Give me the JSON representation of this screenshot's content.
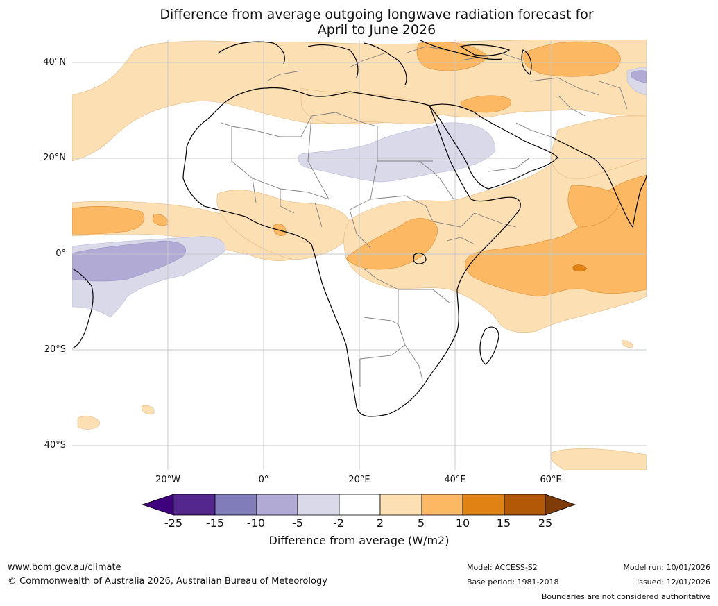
{
  "title": {
    "line1": "Difference from average outgoing longwave radiation forecast for",
    "line2": "April to June 2026"
  },
  "map": {
    "latitude_labels": [
      "40°N",
      "20°N",
      "0°",
      "20°S",
      "40°S"
    ],
    "longitude_labels": [
      "20°W",
      "0°",
      "20°E",
      "40°E",
      "60°E"
    ],
    "colors": {
      "neg25": "#3f007d",
      "neg15": "#54278f",
      "neg10": "#807dba",
      "neg5": "#b0aad4",
      "neg2": "#d9d9ea",
      "zero": "#ffffff",
      "pos2": "#fddfb4",
      "pos5": "#fdb863",
      "pos10": "#e08214",
      "pos15": "#b35806",
      "pos25": "#7f3b08"
    }
  },
  "colorbar": {
    "ticks": [
      "-25",
      "-15",
      "-10",
      "-5",
      "-2",
      "2",
      "5",
      "10",
      "15",
      "25"
    ],
    "label": "Difference from average (W/m2)"
  },
  "footer": {
    "website": "www.bom.gov.au/climate",
    "copyright": "© Commonwealth of Australia 2026, Australian Bureau of Meteorology",
    "model": "Model: ACCESS-S2",
    "base_period": "Base period: 1981-2018",
    "model_run": "Model run: 10/01/2026",
    "issued": "Issued: 12/01/2026",
    "disclaimer": "Boundaries are not considered authoritative"
  }
}
